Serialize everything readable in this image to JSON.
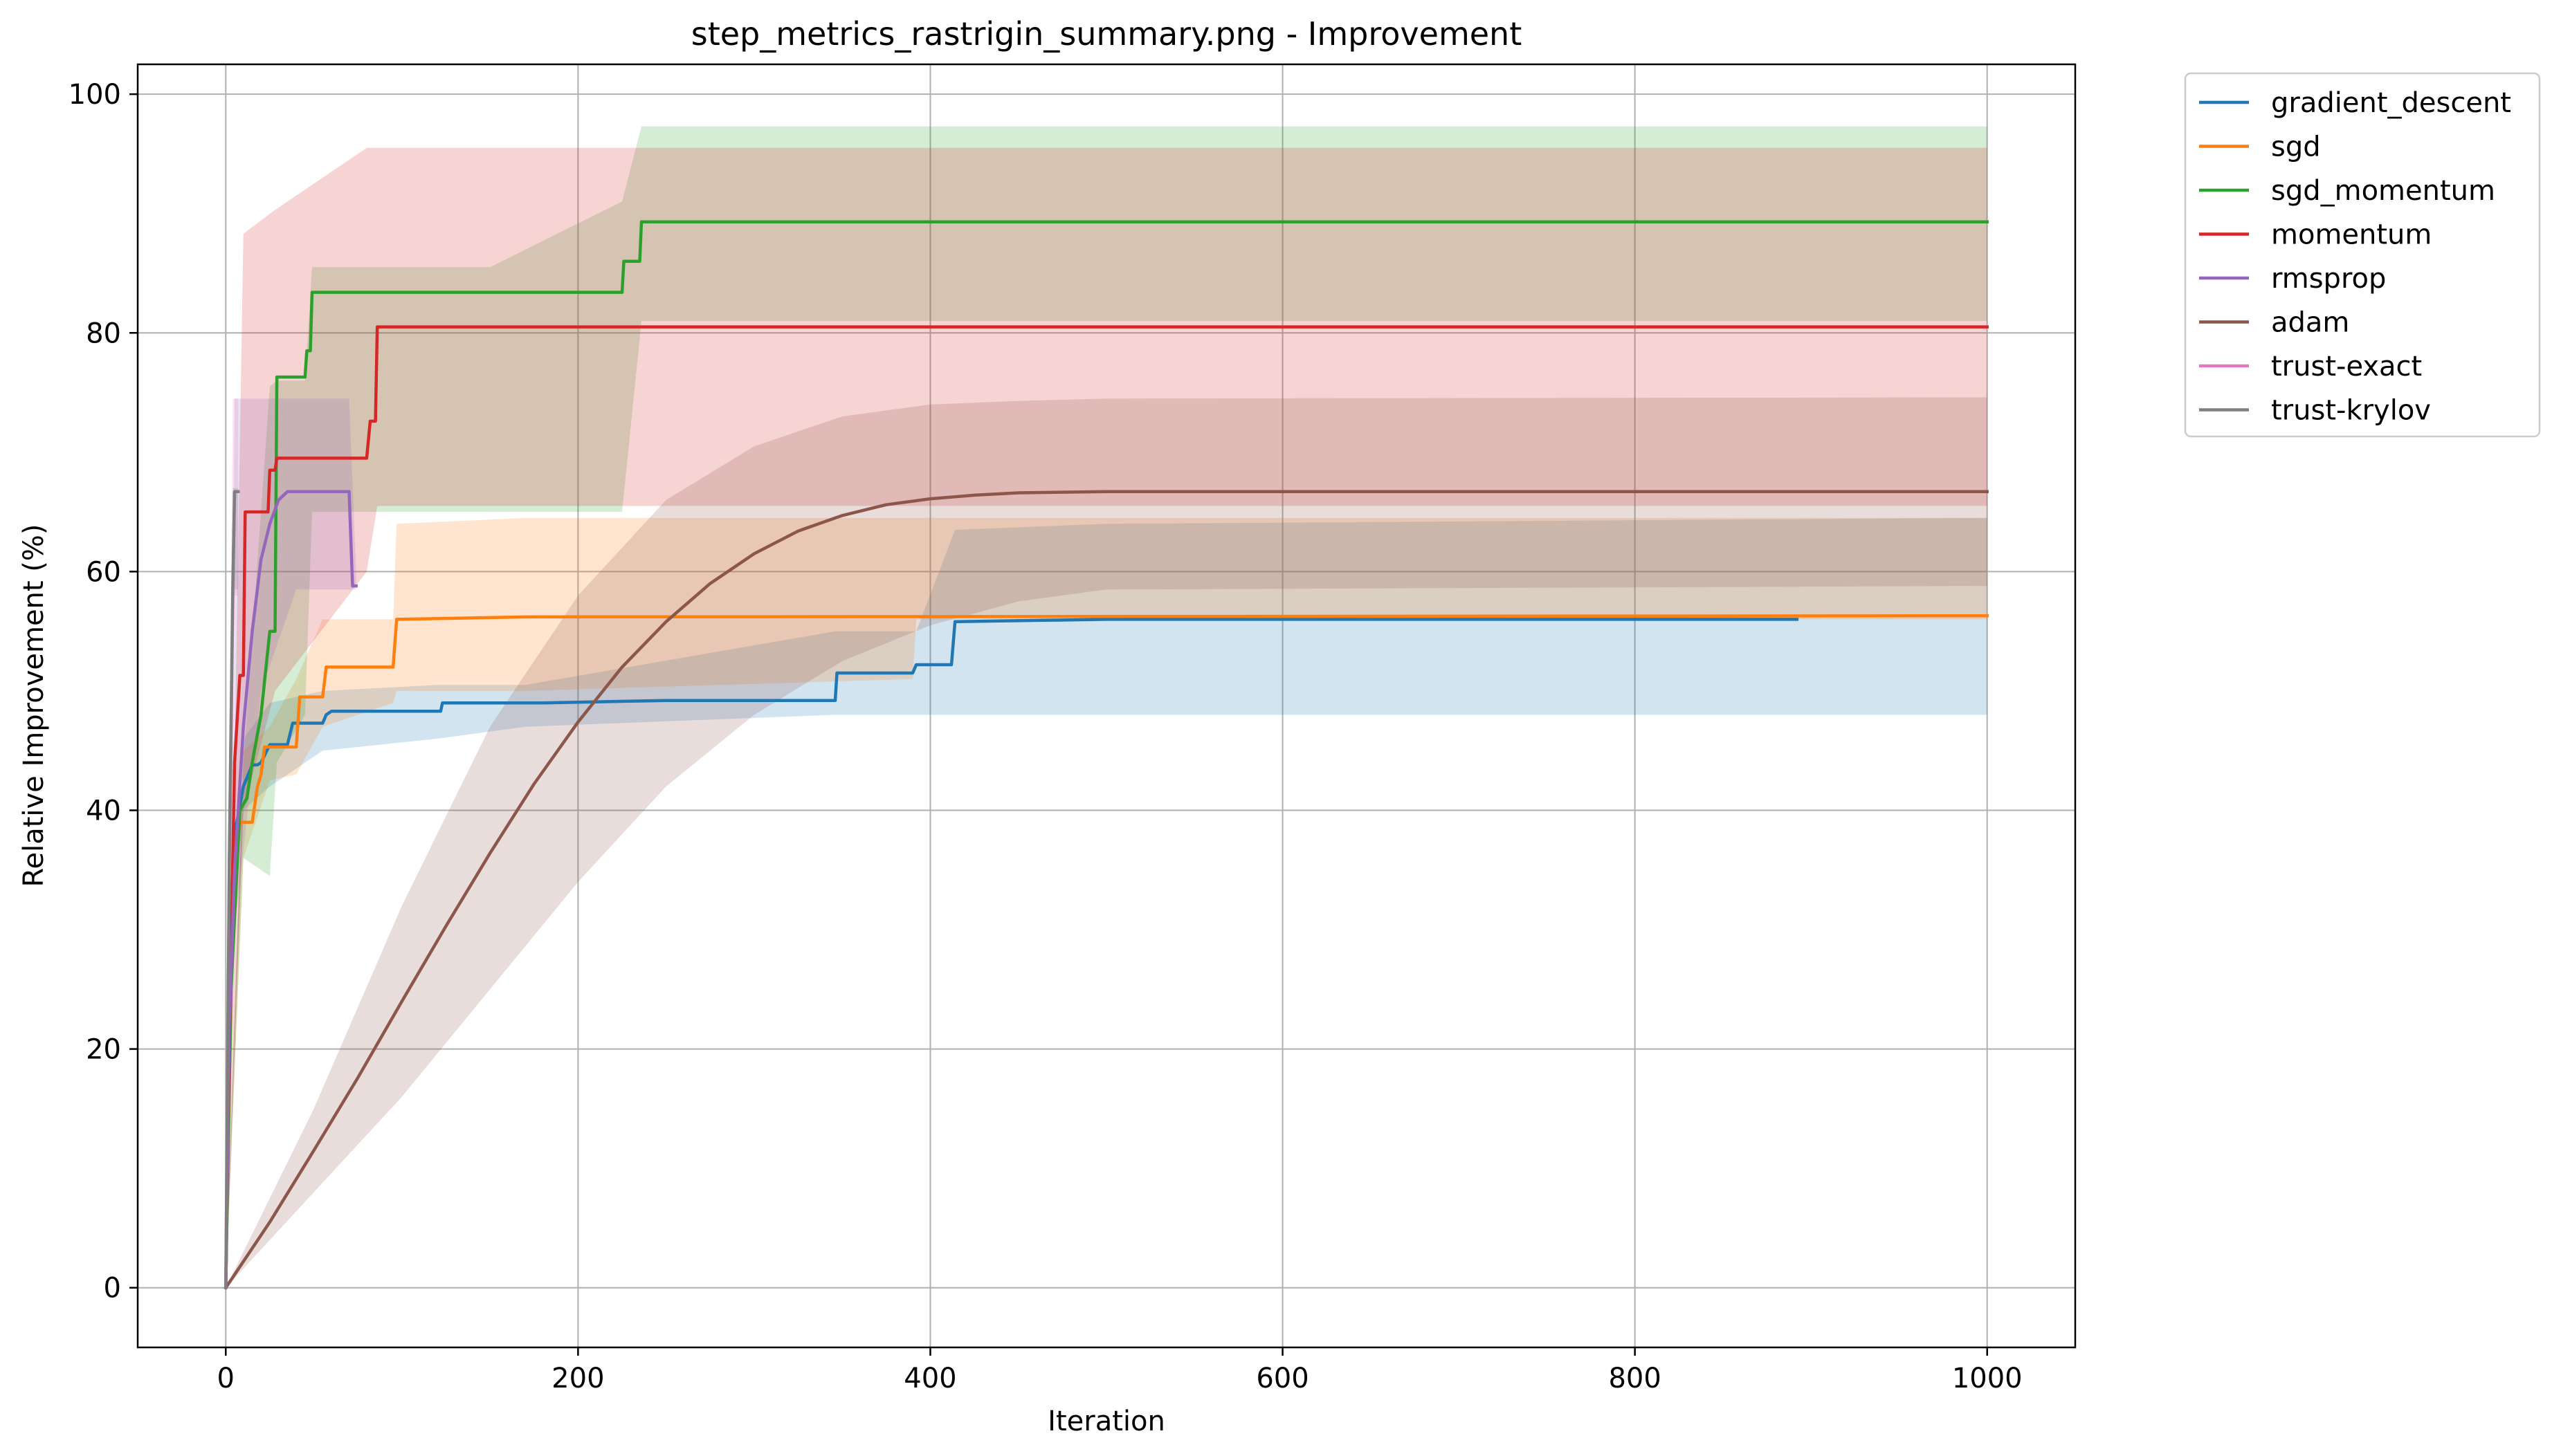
{
  "chart_data": {
    "type": "line",
    "title": "step_metrics_rastrigin_summary.png - Improvement",
    "xlabel": "Iteration",
    "ylabel": "Relative Improvement (%)",
    "xlim": [
      -50,
      1050
    ],
    "ylim": [
      -5,
      102.5
    ],
    "xticks": [
      0,
      200,
      400,
      600,
      800,
      1000
    ],
    "yticks": [
      0,
      20,
      40,
      60,
      80,
      100
    ],
    "xtick_labels": [
      "0",
      "200",
      "400",
      "600",
      "800",
      "1000"
    ],
    "ytick_labels": [
      "0",
      "20",
      "40",
      "60",
      "80",
      "100"
    ],
    "grid": true,
    "legend_position": "outside top-right",
    "band_opacity": 0.2,
    "series": [
      {
        "name": "gradient_descent",
        "color": "#1f77b4",
        "line": [
          [
            0,
            0
          ],
          [
            2,
            20
          ],
          [
            5,
            38
          ],
          [
            10,
            42
          ],
          [
            15,
            43.8
          ],
          [
            18,
            43.8
          ],
          [
            20,
            44
          ],
          [
            25,
            45.5
          ],
          [
            35,
            45.5
          ],
          [
            38,
            47.3
          ],
          [
            55,
            47.3
          ],
          [
            57,
            48
          ],
          [
            60,
            48.3
          ],
          [
            122,
            48.3
          ],
          [
            123,
            49
          ],
          [
            180,
            49
          ],
          [
            250,
            49.2
          ],
          [
            346,
            49.2
          ],
          [
            347,
            51.5
          ],
          [
            390,
            51.5
          ],
          [
            392,
            52.2
          ],
          [
            412,
            52.2
          ],
          [
            414,
            55.8
          ],
          [
            500,
            56
          ],
          [
            892,
            56
          ]
        ],
        "band": [
          [
            0,
            0,
            0
          ],
          [
            10,
            40,
            46
          ],
          [
            25,
            42,
            49
          ],
          [
            55,
            45,
            50
          ],
          [
            120,
            46,
            50.5
          ],
          [
            170,
            47,
            50.5
          ],
          [
            346,
            48,
            55
          ],
          [
            392,
            48,
            55
          ],
          [
            414,
            48,
            63.5
          ],
          [
            500,
            48,
            64
          ],
          [
            1000,
            48,
            64.5
          ]
        ]
      },
      {
        "name": "sgd",
        "color": "#ff7f0e",
        "line": [
          [
            0,
            0
          ],
          [
            3,
            30
          ],
          [
            8,
            39
          ],
          [
            15,
            39
          ],
          [
            18,
            42
          ],
          [
            20,
            43
          ],
          [
            22,
            45.3
          ],
          [
            40,
            45.3
          ],
          [
            42,
            49.5
          ],
          [
            55,
            49.5
          ],
          [
            57,
            52
          ],
          [
            95,
            52
          ],
          [
            97,
            56
          ],
          [
            170,
            56.2
          ],
          [
            1000,
            56.3
          ]
        ],
        "band": [
          [
            0,
            0,
            0
          ],
          [
            10,
            36,
            45
          ],
          [
            25,
            42.5,
            47
          ],
          [
            40,
            43,
            51
          ],
          [
            55,
            47,
            56
          ],
          [
            95,
            49,
            56
          ],
          [
            97,
            50,
            64
          ],
          [
            170,
            50,
            64.5
          ],
          [
            390,
            51,
            64.5
          ],
          [
            392,
            56,
            64.5
          ],
          [
            1000,
            56,
            64.5
          ]
        ]
      },
      {
        "name": "sgd_momentum",
        "color": "#2ca02c",
        "line": [
          [
            0,
            0
          ],
          [
            3,
            25
          ],
          [
            8,
            40
          ],
          [
            12,
            41
          ],
          [
            15,
            44
          ],
          [
            20,
            48
          ],
          [
            25,
            55
          ],
          [
            28,
            55
          ],
          [
            29,
            76.3
          ],
          [
            45,
            76.3
          ],
          [
            46,
            78.5
          ],
          [
            48,
            78.5
          ],
          [
            49,
            83.4
          ],
          [
            225,
            83.4
          ],
          [
            226,
            86
          ],
          [
            235,
            86
          ],
          [
            236,
            89.3
          ],
          [
            1000,
            89.3
          ]
        ],
        "band": [
          [
            0,
            0,
            0
          ],
          [
            10,
            36,
            44
          ],
          [
            25,
            34.5,
            75.5
          ],
          [
            29,
            44,
            76
          ],
          [
            45,
            48,
            76
          ],
          [
            49,
            65,
            85.5
          ],
          [
            150,
            65,
            85.5
          ],
          [
            225,
            65,
            91
          ],
          [
            236,
            81,
            97.3
          ],
          [
            1000,
            81,
            97.3
          ]
        ]
      },
      {
        "name": "momentum",
        "color": "#d62728",
        "line": [
          [
            0,
            0
          ],
          [
            2,
            20
          ],
          [
            5,
            44
          ],
          [
            8,
            51.3
          ],
          [
            10,
            51.3
          ],
          [
            11,
            65
          ],
          [
            24,
            65
          ],
          [
            25,
            68.5
          ],
          [
            28,
            68.5
          ],
          [
            29,
            69.5
          ],
          [
            80,
            69.5
          ],
          [
            82,
            72.6
          ],
          [
            85,
            72.6
          ],
          [
            86,
            80.5
          ],
          [
            1000,
            80.5
          ]
        ],
        "band": [
          [
            0,
            0,
            0
          ],
          [
            10,
            40,
            88.3
          ],
          [
            28,
            50,
            90.3
          ],
          [
            80,
            60,
            95.5
          ],
          [
            86,
            65.5,
            95.5
          ],
          [
            1000,
            65.5,
            95.5
          ]
        ]
      },
      {
        "name": "rmsprop",
        "color": "#9467bd",
        "line": [
          [
            0,
            0
          ],
          [
            2,
            22
          ],
          [
            5,
            35
          ],
          [
            10,
            47
          ],
          [
            15,
            55
          ],
          [
            20,
            61
          ],
          [
            25,
            64
          ],
          [
            30,
            66
          ],
          [
            35,
            66.7
          ],
          [
            70,
            66.7
          ],
          [
            72,
            58.8
          ],
          [
            74,
            58.8
          ]
        ],
        "band": [
          [
            0,
            0,
            0
          ],
          [
            5,
            30,
            74.5
          ],
          [
            20,
            50,
            74.5
          ],
          [
            40,
            58.5,
            74.5
          ],
          [
            70,
            58.5,
            74.5
          ],
          [
            74,
            58.5,
            60
          ]
        ]
      },
      {
        "name": "adam",
        "color": "#8c564b",
        "line": [
          [
            0,
            0
          ],
          [
            25,
            5.5
          ],
          [
            50,
            11.5
          ],
          [
            75,
            17.6
          ],
          [
            100,
            24
          ],
          [
            125,
            30.3
          ],
          [
            150,
            36.4
          ],
          [
            175,
            42.2
          ],
          [
            200,
            47.4
          ],
          [
            225,
            52
          ],
          [
            250,
            55.8
          ],
          [
            275,
            59
          ],
          [
            300,
            61.5
          ],
          [
            325,
            63.4
          ],
          [
            350,
            64.7
          ],
          [
            375,
            65.6
          ],
          [
            400,
            66.1
          ],
          [
            425,
            66.4
          ],
          [
            450,
            66.6
          ],
          [
            500,
            66.7
          ],
          [
            1000,
            66.7
          ]
        ],
        "band": [
          [
            0,
            0,
            0
          ],
          [
            50,
            8,
            15
          ],
          [
            100,
            16,
            32
          ],
          [
            150,
            25,
            47
          ],
          [
            200,
            34,
            58
          ],
          [
            250,
            42,
            66
          ],
          [
            300,
            48,
            70.5
          ],
          [
            350,
            52.5,
            73
          ],
          [
            400,
            55.5,
            74
          ],
          [
            450,
            57.5,
            74.3
          ],
          [
            500,
            58.5,
            74.5
          ],
          [
            1000,
            58.8,
            74.6
          ]
        ]
      },
      {
        "name": "trust-exact",
        "color": "#e377c2",
        "line": [
          [
            0,
            0
          ],
          [
            2,
            35
          ],
          [
            4,
            58
          ],
          [
            5,
            66.7
          ],
          [
            7,
            66.7
          ]
        ],
        "band": [
          [
            0,
            0,
            0
          ],
          [
            2,
            30,
            45
          ],
          [
            4,
            58,
            74.5
          ],
          [
            7,
            58,
            74.5
          ]
        ]
      },
      {
        "name": "trust-krylov",
        "color": "#7f7f7f",
        "line": [
          [
            0,
            0
          ],
          [
            2,
            36
          ],
          [
            4,
            59
          ],
          [
            5,
            66.7
          ],
          [
            7,
            66.7
          ]
        ],
        "band": [
          [
            0,
            0,
            0
          ],
          [
            2,
            32,
            44
          ],
          [
            4,
            58.5,
            67
          ],
          [
            7,
            58.5,
            67
          ]
        ]
      }
    ]
  }
}
